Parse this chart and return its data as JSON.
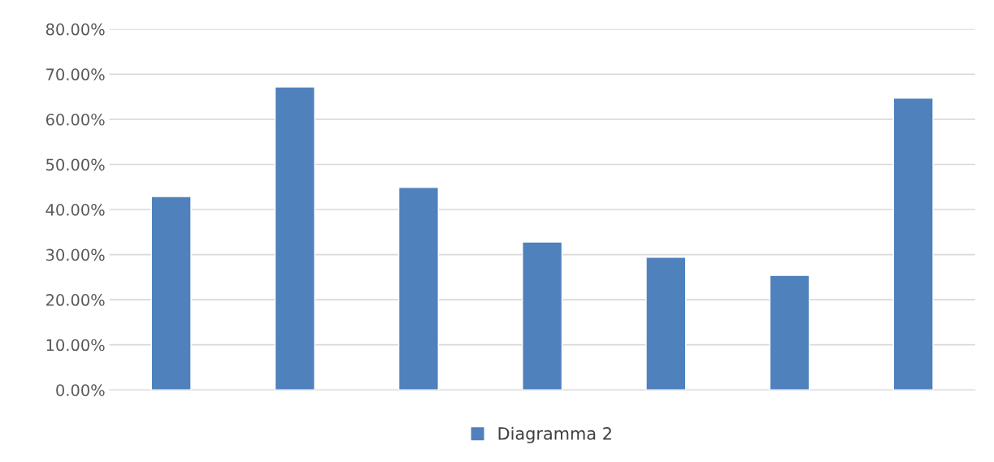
{
  "chart_data": {
    "type": "bar",
    "categories": [
      null,
      null,
      null,
      null,
      null,
      null,
      null
    ],
    "series": [
      {
        "name": "Diagramma 2",
        "color": "#4f81bd",
        "values": [
          42.9,
          67.2,
          44.9,
          32.8,
          29.4,
          25.4,
          64.7
        ]
      }
    ],
    "ylim": [
      0,
      80
    ],
    "yticks": [
      {
        "value": 0,
        "label": "0.00%"
      },
      {
        "value": 10,
        "label": "10.00%"
      },
      {
        "value": 20,
        "label": "20.00%"
      },
      {
        "value": 30,
        "label": "30.00%"
      },
      {
        "value": 40,
        "label": "40.00%"
      },
      {
        "value": 50,
        "label": "50.00%"
      },
      {
        "value": 60,
        "label": "60.00%"
      },
      {
        "value": 70,
        "label": "70.00%"
      },
      {
        "value": 80,
        "label": "80.00%"
      }
    ],
    "grid": "y",
    "legend": "bottom"
  }
}
